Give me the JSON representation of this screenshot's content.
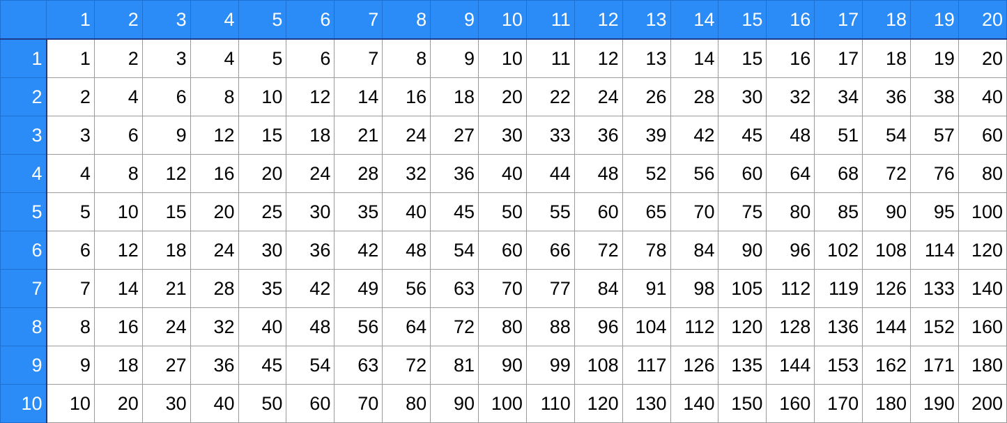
{
  "chart_data": {
    "type": "table",
    "title": "",
    "corner": "",
    "column_headers": [
      1,
      2,
      3,
      4,
      5,
      6,
      7,
      8,
      9,
      10,
      11,
      12,
      13,
      14,
      15,
      16,
      17,
      18,
      19,
      20
    ],
    "row_headers": [
      1,
      2,
      3,
      4,
      5,
      6,
      7,
      8,
      9,
      10
    ],
    "rows": [
      [
        1,
        2,
        3,
        4,
        5,
        6,
        7,
        8,
        9,
        10,
        11,
        12,
        13,
        14,
        15,
        16,
        17,
        18,
        19,
        20
      ],
      [
        2,
        4,
        6,
        8,
        10,
        12,
        14,
        16,
        18,
        20,
        22,
        24,
        26,
        28,
        30,
        32,
        34,
        36,
        38,
        40
      ],
      [
        3,
        6,
        9,
        12,
        15,
        18,
        21,
        24,
        27,
        30,
        33,
        36,
        39,
        42,
        45,
        48,
        51,
        54,
        57,
        60
      ],
      [
        4,
        8,
        12,
        16,
        20,
        24,
        28,
        32,
        36,
        40,
        44,
        48,
        52,
        56,
        60,
        64,
        68,
        72,
        76,
        80
      ],
      [
        5,
        10,
        15,
        20,
        25,
        30,
        35,
        40,
        45,
        50,
        55,
        60,
        65,
        70,
        75,
        80,
        85,
        90,
        95,
        100
      ],
      [
        6,
        12,
        18,
        24,
        30,
        36,
        42,
        48,
        54,
        60,
        66,
        72,
        78,
        84,
        90,
        96,
        102,
        108,
        114,
        120
      ],
      [
        7,
        14,
        21,
        28,
        35,
        42,
        49,
        56,
        63,
        70,
        77,
        84,
        91,
        98,
        105,
        112,
        119,
        126,
        133,
        140
      ],
      [
        8,
        16,
        24,
        32,
        40,
        48,
        56,
        64,
        72,
        80,
        88,
        96,
        104,
        112,
        120,
        128,
        136,
        144,
        152,
        160
      ],
      [
        9,
        18,
        27,
        36,
        45,
        54,
        63,
        72,
        81,
        90,
        99,
        108,
        117,
        126,
        135,
        144,
        153,
        162,
        171,
        180
      ],
      [
        10,
        20,
        30,
        40,
        50,
        60,
        70,
        80,
        90,
        100,
        110,
        120,
        130,
        140,
        150,
        160,
        170,
        180,
        190,
        200
      ]
    ],
    "header_color": "#2b8cf7",
    "header_text_color": "#ffffff",
    "grid": true
  }
}
